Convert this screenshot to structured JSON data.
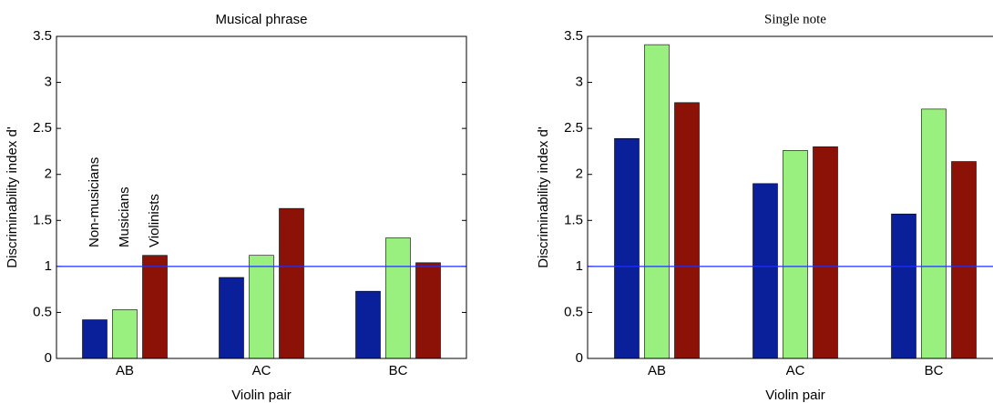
{
  "chart_data": [
    {
      "type": "bar",
      "title": "Musical phrase",
      "xlabel": "Violin pair",
      "ylabel": "Discriminability index d'",
      "categories": [
        "AB",
        "AC",
        "BC"
      ],
      "series": [
        {
          "name": "Non-musicians",
          "color": "#0a1f9a",
          "values": [
            0.42,
            0.88,
            0.73
          ]
        },
        {
          "name": "Musicians",
          "color": "#99f07f",
          "values": [
            0.53,
            1.12,
            1.31
          ]
        },
        {
          "name": "Violinists",
          "color": "#8c1208",
          "values": [
            1.12,
            1.63,
            1.04
          ]
        }
      ],
      "ylim": [
        0,
        3.5
      ],
      "yticks": [
        0,
        0.5,
        1,
        1.5,
        2,
        2.5,
        3,
        3.5
      ],
      "reference_line": 1,
      "reference_color": "#1f2fff"
    },
    {
      "type": "bar",
      "title": "Single note",
      "xlabel": "Violin pair",
      "ylabel": "Discriminability index d'",
      "categories": [
        "AB",
        "AC",
        "BC"
      ],
      "series": [
        {
          "color": "#0a1f9a",
          "values": [
            2.39,
            1.9,
            1.57
          ]
        },
        {
          "color": "#99f07f",
          "values": [
            3.41,
            2.26,
            2.71
          ]
        },
        {
          "color": "#8c1208",
          "values": [
            2.78,
            2.3,
            2.14
          ]
        }
      ],
      "ylim": [
        0,
        3.5
      ],
      "yticks": [
        0,
        0.5,
        1,
        1.5,
        2,
        2.5,
        3,
        3.5
      ],
      "reference_line": 1,
      "reference_color": "#1f2fff"
    }
  ]
}
